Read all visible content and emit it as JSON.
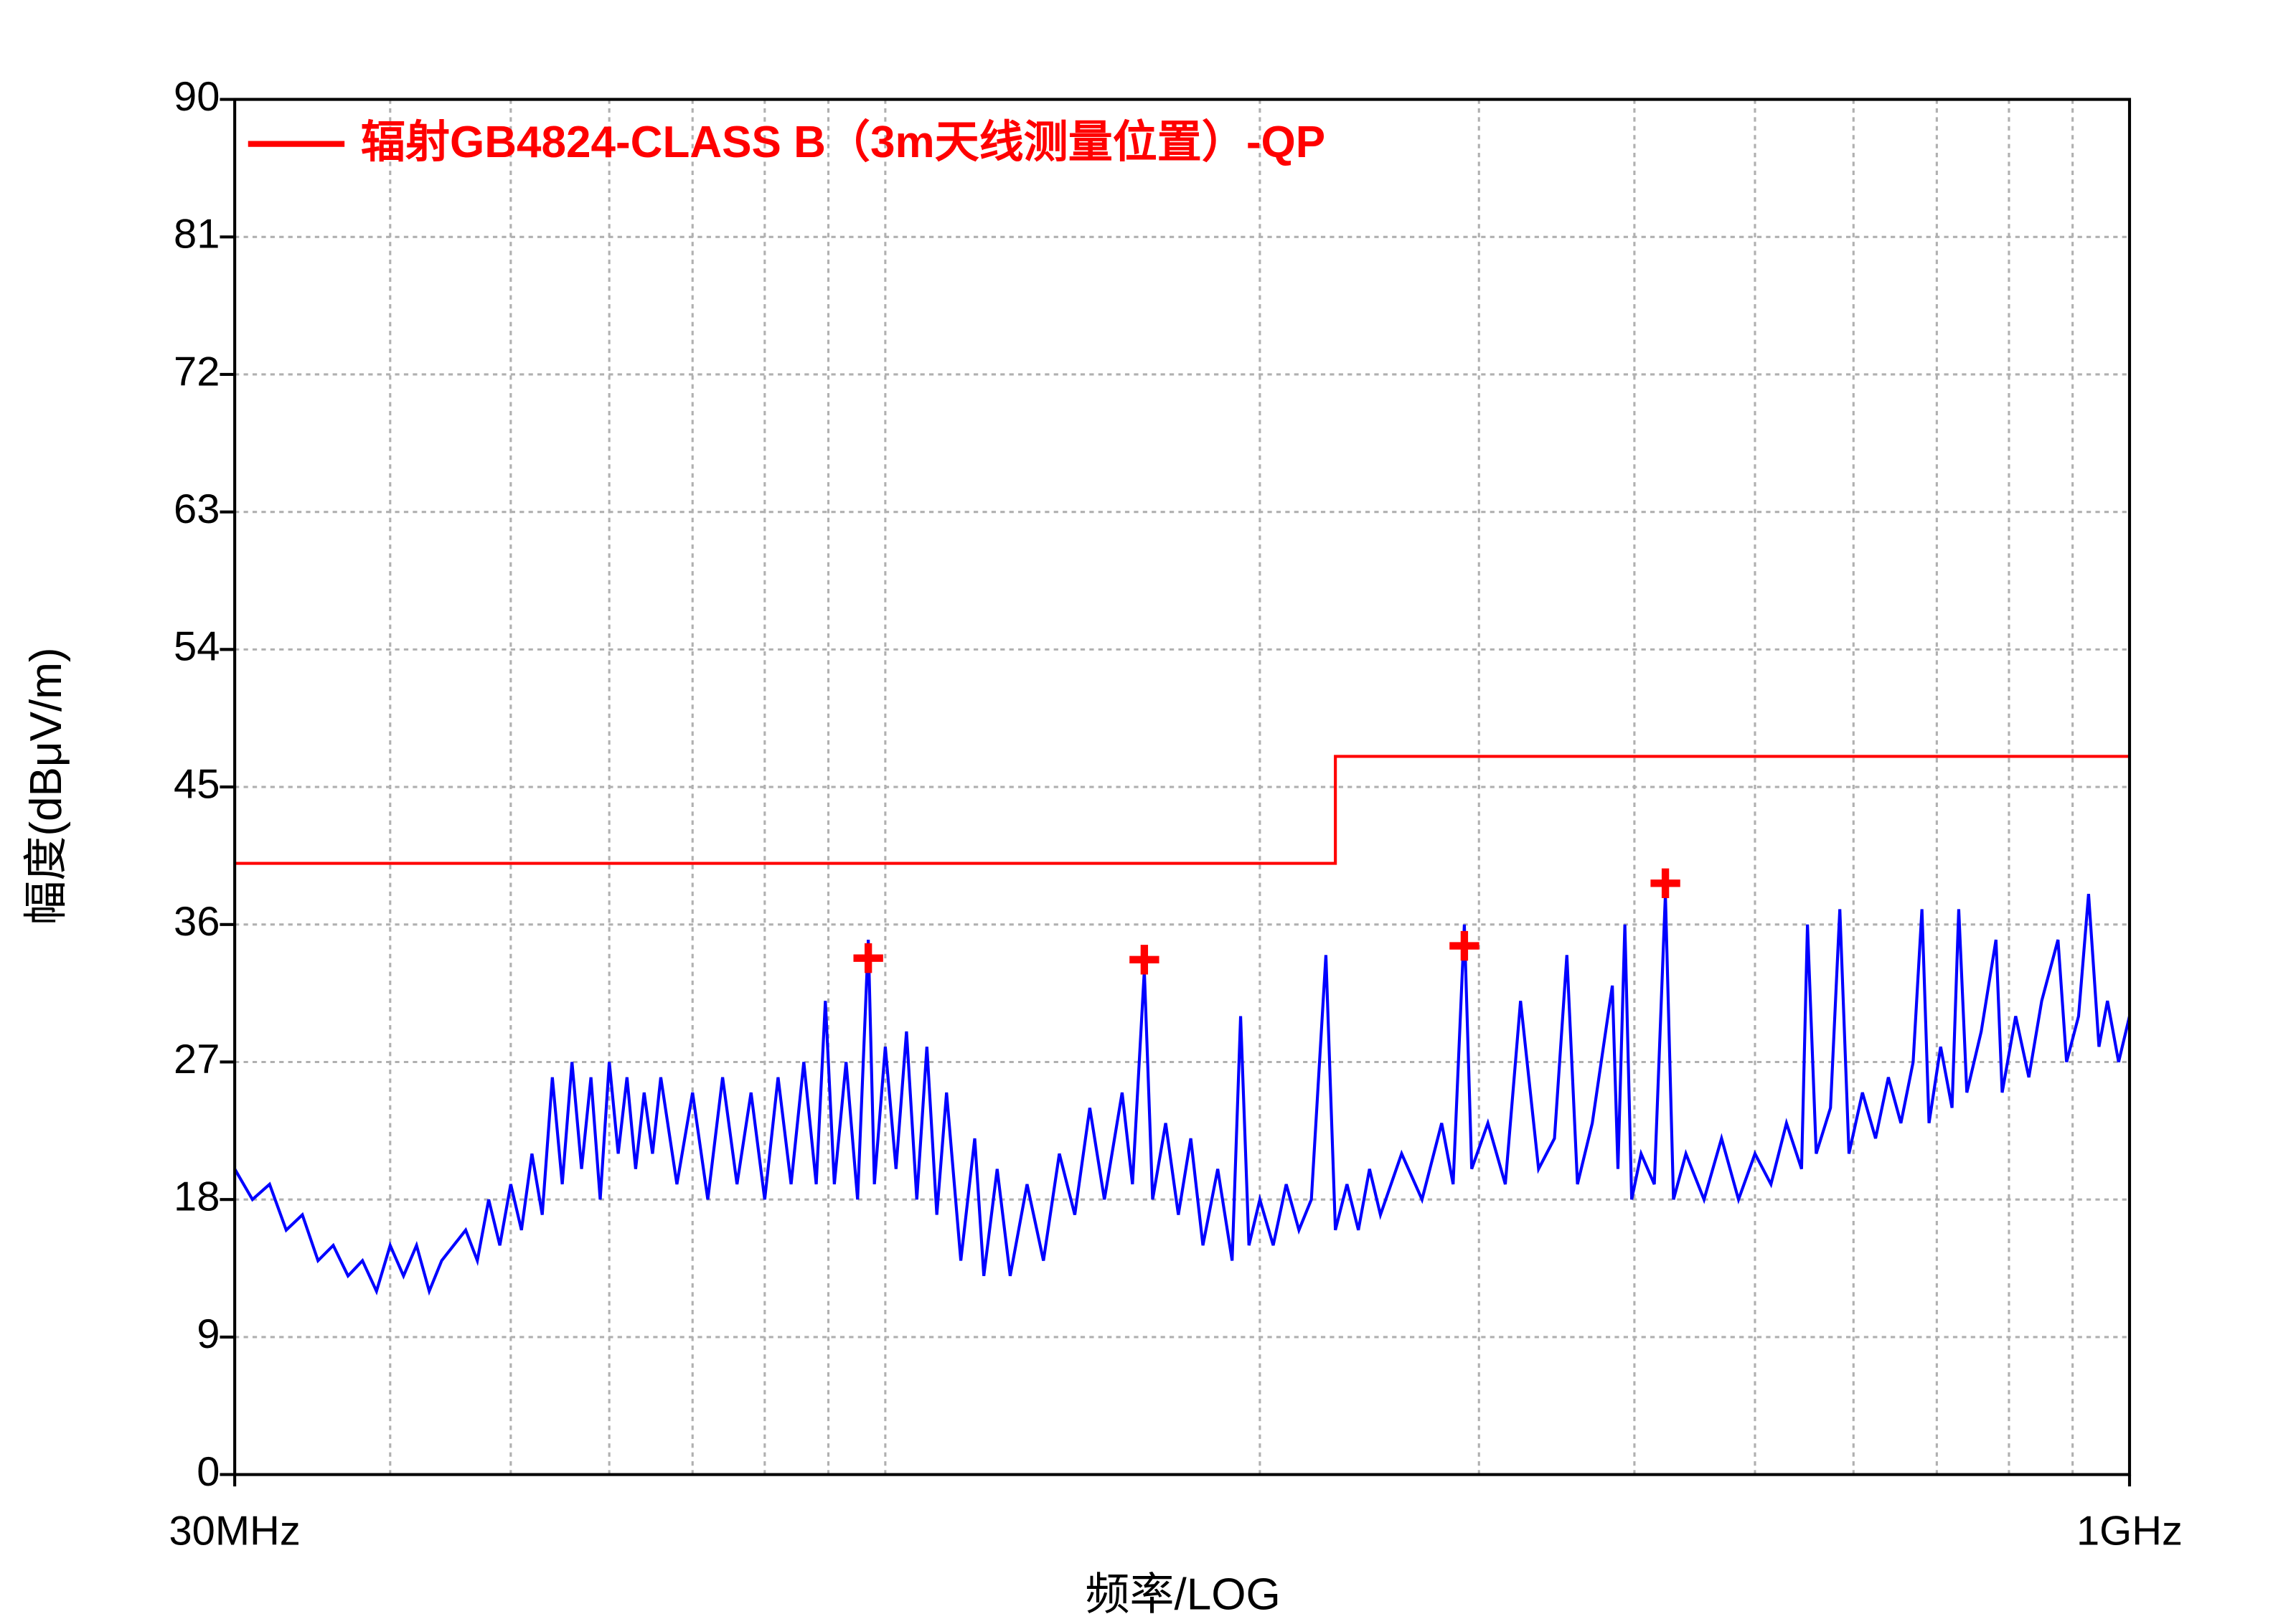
{
  "chart_data": {
    "type": "line",
    "legend_label": "辐射GB4824-CLASS B（3m天线测量位置）-QP",
    "xlabel": "频率/LOG",
    "ylabel": "幅度(dBμV/m)",
    "xscale": "log",
    "xlim": [
      30,
      1000
    ],
    "ylim": [
      0,
      90
    ],
    "xticks": [
      {
        "value": 30,
        "label": "30MHz"
      },
      {
        "value": 1000,
        "label": "1GHz"
      }
    ],
    "xgrid": [
      40,
      50,
      60,
      70,
      80,
      90,
      100,
      200,
      300,
      400,
      500,
      600,
      700,
      800,
      900
    ],
    "yticks": [
      0,
      9,
      18,
      27,
      36,
      45,
      54,
      63,
      72,
      81,
      90
    ],
    "grid": true,
    "series": [
      {
        "color": "#0000ff",
        "x": [
          30,
          31,
          32,
          33,
          34,
          35,
          36,
          37,
          38,
          39,
          40,
          41,
          42,
          43,
          44,
          46,
          47,
          48,
          49,
          50,
          51,
          52,
          53,
          54,
          55,
          56,
          57,
          58,
          59,
          60,
          61,
          62,
          63,
          64,
          65,
          66,
          68,
          70,
          72,
          74,
          76,
          78,
          80,
          82,
          84,
          86,
          88,
          89.5,
          91,
          93,
          95,
          96.9,
          98,
          100,
          102,
          104,
          106,
          108,
          110,
          112,
          115,
          118,
          120,
          123,
          126,
          130,
          134,
          138,
          142,
          146,
          150,
          155,
          158,
          161.5,
          164,
          168,
          172,
          176,
          180,
          185,
          190,
          193,
          196,
          200,
          205,
          210,
          215,
          220,
          226,
          230,
          235,
          240,
          245,
          250,
          260,
          270,
          280,
          286,
          292,
          296,
          305,
          315,
          324,
          335,
          345,
          353,
          360,
          370,
          384,
          388,
          393,
          398,
          405,
          415,
          423.6,
          430,
          440,
          455,
          470,
          485,
          500,
          515,
          530,
          545,
          551,
          560,
          575,
          585,
          595,
          610,
          625,
          640,
          655,
          670,
          681,
          690,
          705,
          720,
          729,
          740,
          760,
          781,
          790,
          810,
          830,
          850,
          876,
          890,
          910,
          927,
          945,
          960,
          980,
          1000
        ],
        "values": [
          20,
          18,
          19,
          16,
          17,
          14,
          15,
          13,
          14,
          12,
          15,
          13,
          15,
          12,
          14,
          16,
          14,
          18,
          15,
          19,
          16,
          21,
          17,
          26,
          19,
          27,
          20,
          26,
          18,
          27,
          21,
          26,
          20,
          25,
          21,
          26,
          19,
          25,
          18,
          26,
          19,
          25,
          18,
          26,
          19,
          27,
          19,
          31,
          19,
          27,
          18,
          35,
          19,
          28,
          20,
          29,
          18,
          28,
          17,
          25,
          14,
          22,
          13,
          20,
          13,
          19,
          14,
          21,
          17,
          24,
          18,
          25,
          19,
          33,
          18,
          23,
          17,
          22,
          15,
          20,
          14,
          30,
          15,
          18,
          15,
          19,
          16,
          18,
          34,
          16,
          19,
          16,
          20,
          17,
          21,
          18,
          23,
          19,
          36,
          20,
          23,
          19,
          31,
          20,
          22,
          34,
          19,
          23,
          32,
          20,
          36,
          18,
          21,
          19,
          38,
          18,
          21,
          18,
          22,
          18,
          21,
          19,
          23,
          20,
          36,
          21,
          24,
          37,
          21,
          25,
          22,
          26,
          23,
          27,
          37,
          23,
          28,
          24,
          37,
          25,
          29,
          35,
          25,
          30,
          26,
          31,
          35,
          27,
          30,
          38,
          28,
          31,
          27,
          30
        ]
      },
      {
        "name": "辐射GB4824-CLASS B（3m天线测量位置）-QP",
        "color": "#ff0000",
        "x": [
          30,
          230,
          230,
          1000
        ],
        "values": [
          40,
          40,
          47,
          47
        ]
      },
      {
        "type": "scatter",
        "color": "#ff0000",
        "x": [
          96.9,
          161.5,
          292,
          423.6
        ],
        "values": [
          33.8,
          33.7,
          34.6,
          38.7
        ]
      }
    ]
  }
}
